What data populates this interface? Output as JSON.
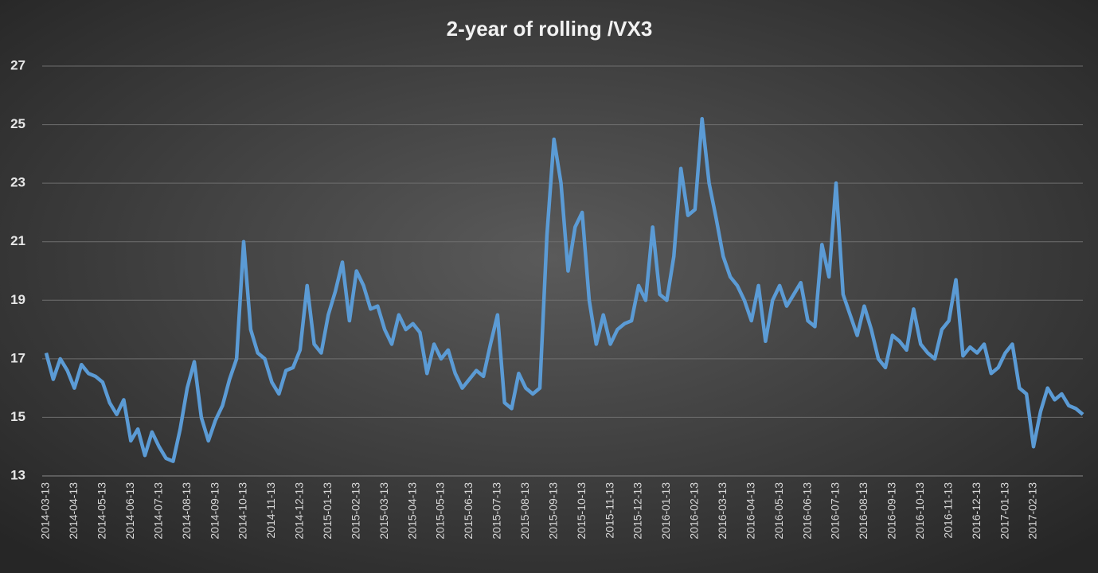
{
  "chart_data": {
    "type": "line",
    "title": "2-year of rolling /VX3",
    "categories": [
      "2014-03-13",
      null,
      null,
      null,
      "2014-04-13",
      null,
      null,
      null,
      "2014-05-13",
      null,
      null,
      null,
      "2014-06-13",
      null,
      null,
      null,
      "2014-07-13",
      null,
      null,
      null,
      "2014-08-13",
      null,
      null,
      null,
      "2014-09-13",
      null,
      null,
      null,
      "2014-10-13",
      null,
      null,
      null,
      "2014-11-13",
      null,
      null,
      null,
      "2014-12-13",
      null,
      null,
      null,
      "2015-01-13",
      null,
      null,
      null,
      "2015-02-13",
      null,
      null,
      null,
      "2015-03-13",
      null,
      null,
      null,
      "2015-04-13",
      null,
      null,
      null,
      "2015-05-13",
      null,
      null,
      null,
      "2015-06-13",
      null,
      null,
      null,
      "2015-07-13",
      null,
      null,
      null,
      "2015-08-13",
      null,
      null,
      null,
      "2015-09-13",
      null,
      null,
      null,
      "2015-10-13",
      null,
      null,
      null,
      "2015-11-13",
      null,
      null,
      null,
      "2015-12-13",
      null,
      null,
      null,
      "2016-01-13",
      null,
      null,
      null,
      "2016-02-13",
      null,
      null,
      null,
      "2016-03-13",
      null,
      null,
      null,
      "2016-04-13",
      null,
      null,
      null,
      "2016-05-13",
      null,
      null,
      null,
      "2016-06-13",
      null,
      null,
      null,
      "2016-07-13",
      null,
      null,
      null,
      "2016-08-13",
      null,
      null,
      null,
      "2016-09-13",
      null,
      null,
      null,
      "2016-10-13",
      null,
      null,
      null,
      "2016-11-13",
      null,
      null,
      null,
      "2016-12-13",
      null,
      null,
      null,
      "2017-01-13",
      null,
      null,
      null,
      "2017-02-13",
      null,
      null,
      null,
      null,
      null,
      null,
      null
    ],
    "series": [
      {
        "name": "/VX3",
        "color": "#5b9bd5",
        "values": [
          17.2,
          16.3,
          17.0,
          16.6,
          16.0,
          16.8,
          16.5,
          16.4,
          16.2,
          15.5,
          15.1,
          15.6,
          14.2,
          14.6,
          13.7,
          14.5,
          14.0,
          13.6,
          13.5,
          14.6,
          16.0,
          16.9,
          15.0,
          14.2,
          14.9,
          15.4,
          16.3,
          17.0,
          21.0,
          18.0,
          17.2,
          17.0,
          16.2,
          15.8,
          16.6,
          16.7,
          17.3,
          19.5,
          17.5,
          17.2,
          18.5,
          19.3,
          20.3,
          18.3,
          20.0,
          19.5,
          18.7,
          18.8,
          18.0,
          17.5,
          18.5,
          18.0,
          18.2,
          17.9,
          16.5,
          17.5,
          17.0,
          17.3,
          16.5,
          16.0,
          16.3,
          16.6,
          16.4,
          17.5,
          18.5,
          15.5,
          15.3,
          16.5,
          16.0,
          15.8,
          16.0,
          21.2,
          24.5,
          23.0,
          20.0,
          21.5,
          22.0,
          19.0,
          17.5,
          18.5,
          17.5,
          18.0,
          18.2,
          18.3,
          19.5,
          19.0,
          21.5,
          19.2,
          19.0,
          20.5,
          23.5,
          21.9,
          22.1,
          25.2,
          23.0,
          21.8,
          20.5,
          19.8,
          19.5,
          19.0,
          18.3,
          19.5,
          17.6,
          19.0,
          19.5,
          18.8,
          19.2,
          19.6,
          18.3,
          18.1,
          20.9,
          19.8,
          23.0,
          19.2,
          18.5,
          17.8,
          18.8,
          18.0,
          17.0,
          16.7,
          17.8,
          17.6,
          17.3,
          18.7,
          17.5,
          17.2,
          17.0,
          18.0,
          18.3,
          19.7,
          17.1,
          17.4,
          17.2,
          17.5,
          16.5,
          16.7,
          17.2,
          17.5,
          16.0,
          15.8,
          14.0,
          15.2,
          16.0,
          15.6,
          15.8,
          15.4,
          15.3,
          15.1
        ]
      }
    ],
    "ylim": [
      13,
      27
    ],
    "yticks": [
      13,
      15,
      17,
      19,
      21,
      23,
      25,
      27
    ],
    "grid": true
  }
}
